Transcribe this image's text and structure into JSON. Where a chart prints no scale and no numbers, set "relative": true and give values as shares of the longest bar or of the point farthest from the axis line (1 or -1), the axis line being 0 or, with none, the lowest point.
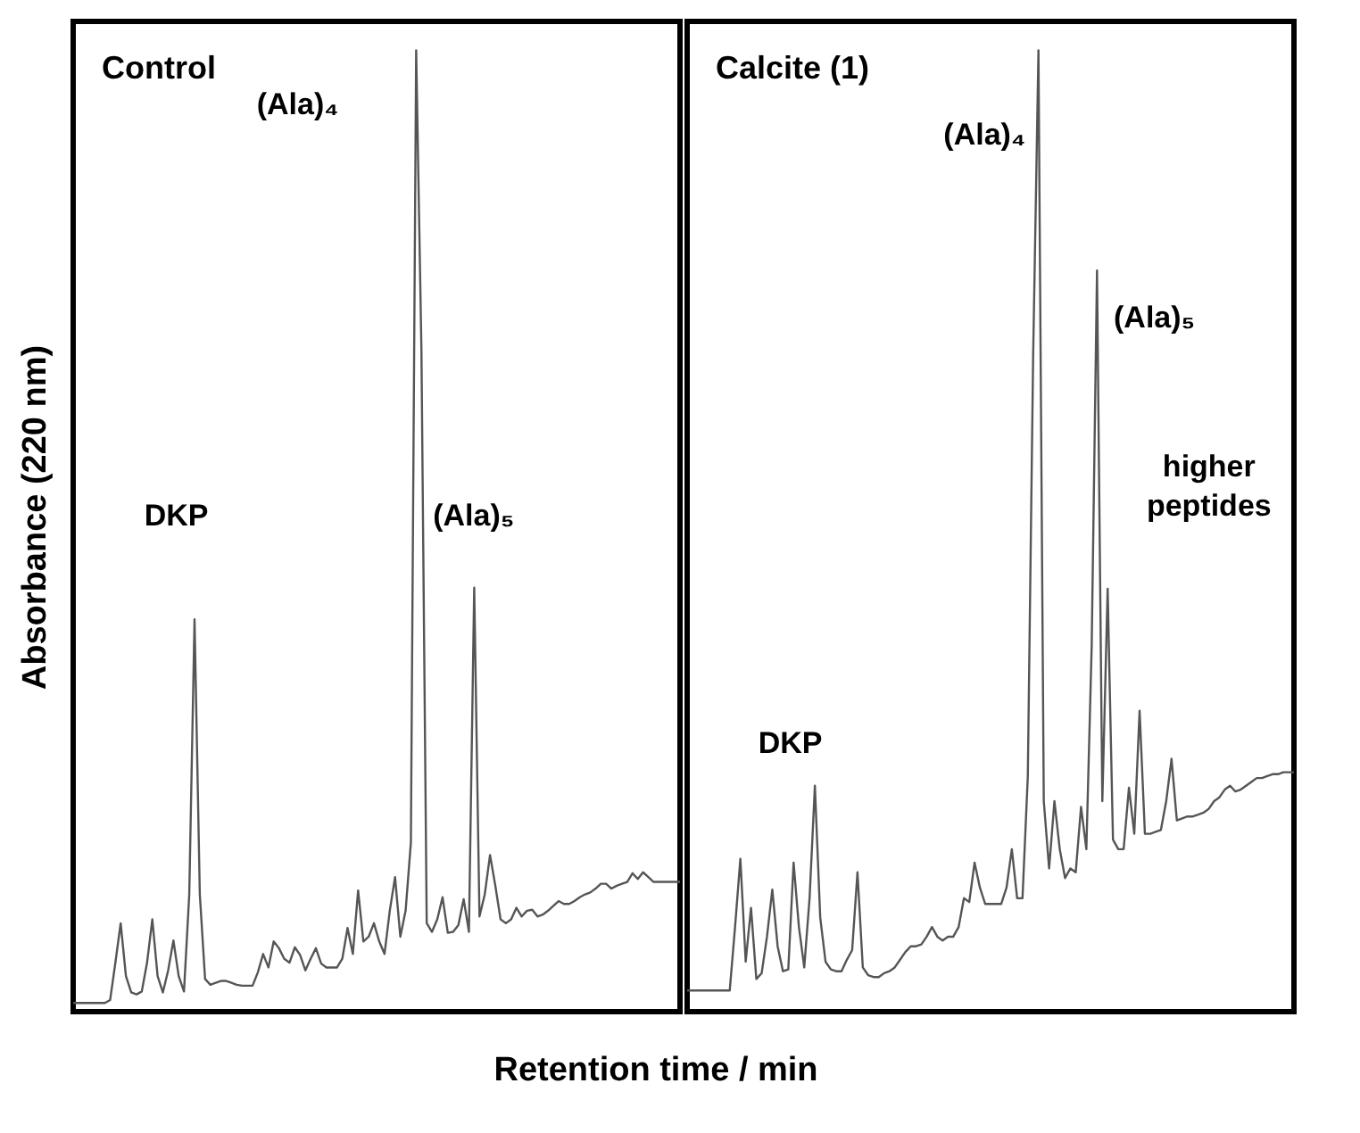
{
  "chart_data": [
    {
      "type": "line",
      "title": "Control",
      "xlabel": "Retention time / min",
      "ylabel": "Absorbance (220 nm)",
      "relative": true,
      "categories": [
        null,
        null,
        null,
        null,
        null,
        null,
        null,
        null,
        null,
        null,
        null,
        null,
        null,
        null,
        null,
        null,
        null,
        null,
        null,
        null,
        null,
        null,
        null,
        null,
        null,
        null,
        null,
        null,
        null,
        null,
        null,
        null,
        null,
        null,
        null,
        null,
        null,
        null,
        null,
        null,
        null,
        null,
        null,
        null,
        null,
        null,
        null,
        null,
        null,
        null,
        null,
        null,
        null,
        null,
        null,
        null,
        null,
        null,
        null,
        null,
        null,
        null,
        null,
        null,
        null,
        null,
        null,
        null,
        null,
        null,
        null,
        null,
        null,
        null,
        null,
        null,
        null,
        null,
        null,
        null,
        null,
        null,
        null,
        null,
        null,
        null,
        null,
        null,
        null,
        null,
        null,
        null,
        null,
        null,
        null,
        null,
        null,
        null,
        null,
        null,
        null,
        null,
        null,
        null,
        null,
        null,
        null,
        null,
        null,
        null,
        null,
        null,
        null,
        null,
        null,
        null
      ],
      "series": [
        {
          "color": "#555555",
          "values": [
            0.009,
            0.009,
            0.009,
            0.009,
            0.009,
            0.009,
            0.009,
            0.012,
            0.051,
            0.092,
            0.037,
            0.02,
            0.018,
            0.021,
            0.051,
            0.096,
            0.037,
            0.02,
            0.043,
            0.074,
            0.037,
            0.021,
            0.122,
            0.408,
            0.122,
            0.034,
            0.028,
            0.03,
            0.032,
            0.032,
            0.03,
            0.028,
            0.027,
            0.027,
            0.027,
            0.041,
            0.06,
            0.046,
            0.073,
            0.066,
            0.055,
            0.051,
            0.067,
            0.059,
            0.043,
            0.055,
            0.066,
            0.05,
            0.046,
            0.046,
            0.046,
            0.055,
            0.087,
            0.06,
            0.126,
            0.073,
            0.078,
            0.092,
            0.073,
            0.06,
            0.105,
            0.14,
            0.078,
            0.105,
            0.176,
            1,
            0.688,
            0.092,
            0.083,
            0.096,
            0.119,
            0.082,
            0.083,
            0.09,
            0.117,
            0.083,
            0.441,
            0.099,
            0.122,
            0.163,
            0.131,
            0.096,
            0.092,
            0.096,
            0.108,
            0.099,
            0.105,
            0.106,
            0.099,
            0.101,
            0.105,
            0.11,
            0.115,
            0.112,
            0.112,
            0.115,
            0.119,
            0.122,
            0.124,
            0.128,
            0.133,
            0.133,
            0.128,
            0.131,
            0.133,
            0.135,
            0.144,
            0.138,
            0.145,
            0.14,
            0.135,
            0.135,
            0.135,
            0.135,
            0.135,
            0.135
          ]
        }
      ],
      "annotations": [
        "(Ala)₄",
        "DKP",
        "(Ala)₅"
      ]
    },
    {
      "type": "line",
      "title": "Calcite (1)",
      "relative": true,
      "categories": [
        null,
        null,
        null,
        null,
        null,
        null,
        null,
        null,
        null,
        null,
        null,
        null,
        null,
        null,
        null,
        null,
        null,
        null,
        null,
        null,
        null,
        null,
        null,
        null,
        null,
        null,
        null,
        null,
        null,
        null,
        null,
        null,
        null,
        null,
        null,
        null,
        null,
        null,
        null,
        null,
        null,
        null,
        null,
        null,
        null,
        null,
        null,
        null,
        null,
        null,
        null,
        null,
        null,
        null,
        null,
        null,
        null,
        null,
        null,
        null,
        null,
        null,
        null,
        null,
        null,
        null,
        null,
        null,
        null,
        null,
        null,
        null,
        null,
        null,
        null,
        null,
        null,
        null,
        null,
        null,
        null,
        null,
        null,
        null,
        null,
        null,
        null,
        null,
        null,
        null,
        null,
        null,
        null,
        null,
        null,
        null,
        null,
        null,
        null,
        null,
        null,
        null,
        null,
        null,
        null,
        null,
        null,
        null,
        null,
        null,
        null,
        null,
        null,
        null,
        null
      ],
      "series": [
        {
          "color": "#555555",
          "values": [
            0.022,
            0.022,
            0.022,
            0.022,
            0.022,
            0.022,
            0.022,
            0.022,
            0.022,
            0.088,
            0.159,
            0.052,
            0.108,
            0.034,
            0.04,
            0.078,
            0.127,
            0.068,
            0.042,
            0.044,
            0.155,
            0.088,
            0.046,
            0.118,
            0.235,
            0.098,
            0.052,
            0.044,
            0.042,
            0.042,
            0.054,
            0.064,
            0.145,
            0.046,
            0.038,
            0.036,
            0.036,
            0.04,
            0.042,
            0.046,
            0.054,
            0.062,
            0.068,
            0.068,
            0.07,
            0.078,
            0.088,
            0.078,
            0.074,
            0.078,
            0.078,
            0.088,
            0.118,
            0.114,
            0.155,
            0.129,
            0.112,
            0.112,
            0.112,
            0.112,
            0.129,
            0.169,
            0.118,
            0.118,
            0.245,
            0.681,
            1,
            0.219,
            0.149,
            0.219,
            0.169,
            0.139,
            0.149,
            0.145,
            0.213,
            0.169,
            0.38,
            0.771,
            0.219,
            0.44,
            0.179,
            0.169,
            0.169,
            0.233,
            0.185,
            0.313,
            0.185,
            0.185,
            0.187,
            0.189,
            0.219,
            0.263,
            0.199,
            0.201,
            0.203,
            0.203,
            0.205,
            0.207,
            0.211,
            0.219,
            0.223,
            0.231,
            0.235,
            0.229,
            0.231,
            0.235,
            0.239,
            0.243,
            0.243,
            0.245,
            0.247,
            0.247,
            0.249,
            0.249,
            0.249
          ]
        }
      ],
      "annotations": [
        "DKP",
        "(Ala)₄",
        "(Ala)₅",
        "higher\npeptides"
      ]
    }
  ]
}
